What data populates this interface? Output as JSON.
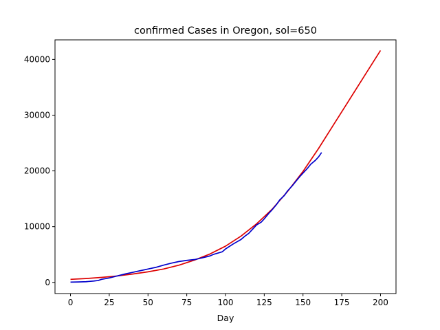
{
  "chart_data": {
    "type": "line",
    "title": "confirmed Cases in Oregon, sol=650",
    "xlabel": "Day",
    "ylabel": "",
    "xlim": [
      -10,
      210
    ],
    "ylim": [
      -2000,
      43500
    ],
    "grid": false,
    "legend": "none",
    "x_ticks": [
      0,
      25,
      50,
      75,
      100,
      125,
      150,
      175,
      200
    ],
    "x_tick_labels": [
      "0",
      "25",
      "50",
      "75",
      "100",
      "125",
      "150",
      "175",
      "200"
    ],
    "y_ticks": [
      0,
      10000,
      20000,
      30000,
      40000
    ],
    "y_tick_labels": [
      "0",
      "10000",
      "20000",
      "30000",
      "40000"
    ],
    "series": [
      {
        "color": "#dd0000",
        "x": [
          0,
          10,
          20,
          30,
          40,
          50,
          60,
          70,
          80,
          90,
          100,
          110,
          120,
          130,
          140,
          150,
          160,
          170,
          180,
          190,
          200
        ],
        "values": [
          550,
          700,
          900,
          1150,
          1500,
          1900,
          2400,
          3100,
          4000,
          5100,
          6500,
          8300,
          10500,
          13100,
          16300,
          19900,
          24000,
          28400,
          32800,
          37200,
          41600
        ]
      },
      {
        "color": "#0000cc",
        "x": [
          0,
          5,
          10,
          15,
          18,
          20,
          25,
          30,
          35,
          40,
          45,
          50,
          55,
          60,
          65,
          70,
          75,
          80,
          85,
          90,
          92,
          95,
          98,
          100,
          105,
          110,
          113,
          115,
          118,
          120,
          123,
          125,
          128,
          130,
          133,
          135,
          138,
          140,
          143,
          145,
          148,
          150,
          153,
          155,
          158,
          160,
          162
        ],
        "values": [
          50,
          80,
          130,
          250,
          350,
          550,
          800,
          1150,
          1500,
          1800,
          2100,
          2400,
          2700,
          3100,
          3450,
          3750,
          3950,
          4100,
          4400,
          4750,
          5000,
          5250,
          5500,
          6000,
          6900,
          7700,
          8400,
          8800,
          9700,
          10300,
          10800,
          11400,
          12400,
          13000,
          14000,
          14800,
          15600,
          16400,
          17300,
          18000,
          19000,
          19600,
          20500,
          21200,
          21900,
          22500,
          23300
        ]
      }
    ]
  }
}
